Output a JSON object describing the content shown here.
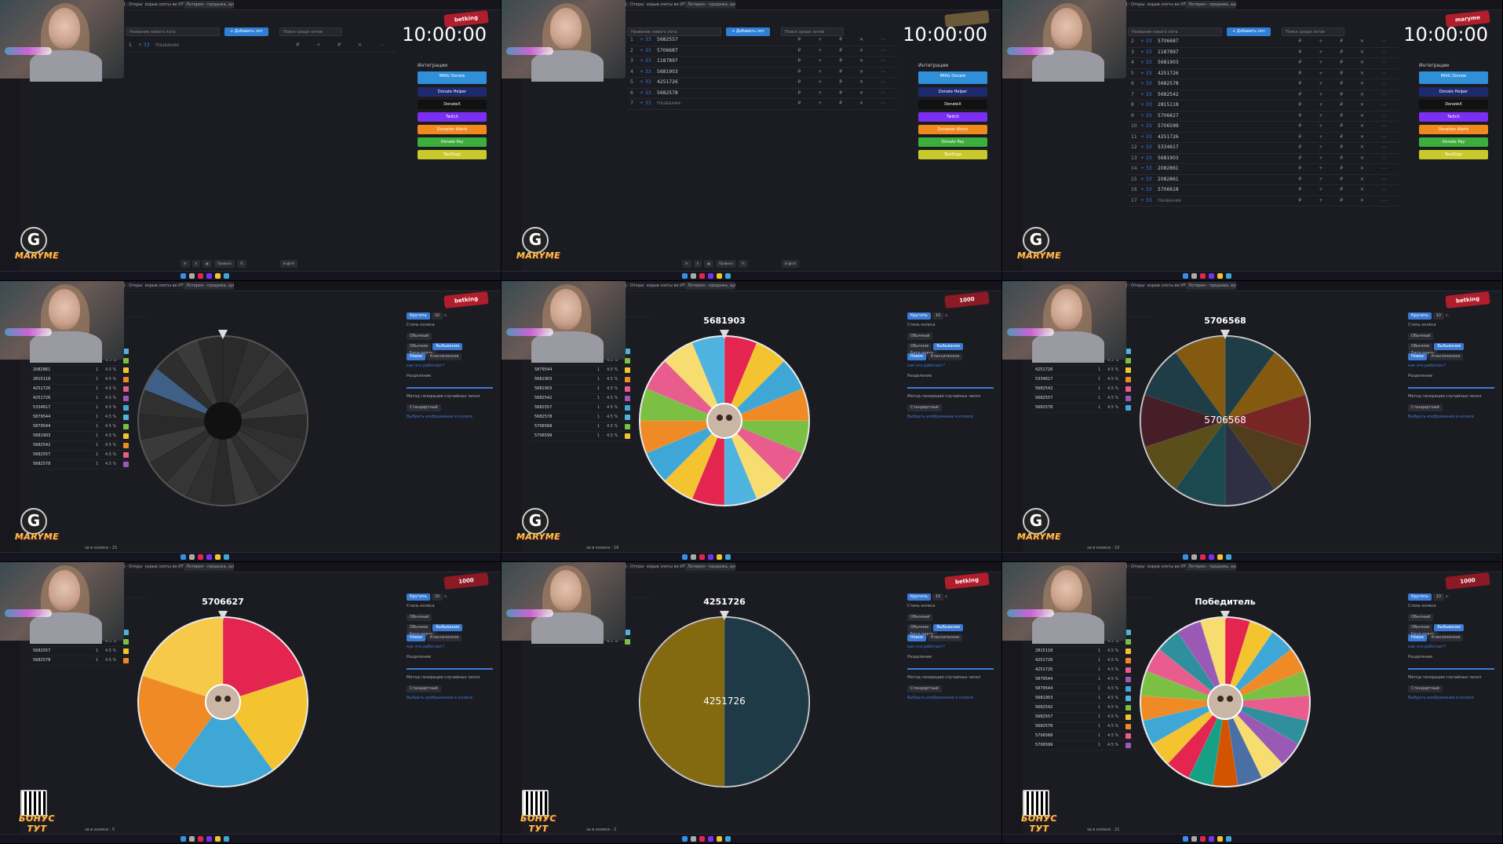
{
  "browser": {
    "tabs": [
      "Войти AGJ - Открыть войти к",
      "взрыв злоты ве ИТ - Поиск в",
      "Лотерея - продажа, аукцион"
    ]
  },
  "streamer": {
    "logo_letter": "G",
    "name": "MARYME",
    "name_small": "maryme",
    "bonus_text": "БОНУС ТУТ"
  },
  "timer": "10:00:00",
  "badges": {
    "top_small": "betking",
    "coins": "1000"
  },
  "auction": {
    "new_lot_placeholder": "Название нового лота",
    "add_button": "+ Добавить лот",
    "search_placeholder": "Поиск среди лотов",
    "empty_lot_name": "Название",
    "panel1_lots": [
      {
        "n": "1",
        "plus": "+ 33",
        "name": "Название"
      }
    ],
    "panel2_lots": [
      {
        "n": "1",
        "plus": "+ 33",
        "name": "5682557"
      },
      {
        "n": "2",
        "plus": "+ 33",
        "name": "5706687"
      },
      {
        "n": "3",
        "plus": "+ 33",
        "name": "1187897"
      },
      {
        "n": "4",
        "plus": "+ 33",
        "name": "5681903"
      },
      {
        "n": "5",
        "plus": "+ 33",
        "name": "4251726"
      },
      {
        "n": "6",
        "plus": "+ 33",
        "name": "5682578"
      },
      {
        "n": "7",
        "plus": "+ 33",
        "name": "Название"
      }
    ],
    "panel3_lots": [
      {
        "n": "2",
        "plus": "+ 33",
        "name": "5706687"
      },
      {
        "n": "3",
        "plus": "+ 33",
        "name": "1187897"
      },
      {
        "n": "4",
        "plus": "+ 33",
        "name": "5681903"
      },
      {
        "n": "5",
        "plus": "+ 33",
        "name": "4251726"
      },
      {
        "n": "6",
        "plus": "+ 33",
        "name": "5682578"
      },
      {
        "n": "7",
        "plus": "+ 33",
        "name": "5682542"
      },
      {
        "n": "8",
        "plus": "+ 33",
        "name": "2815118"
      },
      {
        "n": "9",
        "plus": "+ 33",
        "name": "5706627"
      },
      {
        "n": "10",
        "plus": "+ 33",
        "name": "5706599"
      },
      {
        "n": "11",
        "plus": "+ 33",
        "name": "4251726"
      },
      {
        "n": "12",
        "plus": "+ 33",
        "name": "5334617"
      },
      {
        "n": "13",
        "plus": "+ 33",
        "name": "5681903"
      },
      {
        "n": "14",
        "plus": "+ 33",
        "name": "2082861"
      },
      {
        "n": "15",
        "plus": "+ 33",
        "name": "2082861"
      },
      {
        "n": "16",
        "plus": "+ 33",
        "name": "5706618"
      },
      {
        "n": "17",
        "plus": "+ 33",
        "name": "Название"
      }
    ],
    "integrations_title": "Интеграции",
    "integrations": [
      {
        "label": "IMAG Donate",
        "color": "#2f8fd8"
      },
      {
        "label": "Donate Helper",
        "color": "#1d2a6b"
      },
      {
        "label": "DonateX",
        "color": "#111111"
      },
      {
        "label": "Twitch",
        "color": "#7b2ff2"
      },
      {
        "label": "Donation Alerts",
        "color": "#f08a1c"
      },
      {
        "label": "Donate Pay",
        "color": "#3cae3c"
      },
      {
        "label": "TwoDogs",
        "color": "#c9c92c"
      }
    ],
    "bottom_buttons": [
      "Правила",
      "English"
    ]
  },
  "wheel": {
    "spin_button": "Крутить",
    "spin_value": "10",
    "spin_unit": "с.",
    "style_label": "Стиль колеса",
    "style_value": "Обычный",
    "mode_tabs": [
      "Обычное",
      "Выбывание",
      "Батл рояль"
    ],
    "sub_tabs": [
      "Новое",
      "Классическое"
    ],
    "how_link": "как это работает?",
    "split_label": "Разделение",
    "split_hint": "лото > 10",
    "rng_label": "Метод генерации случайных чисел",
    "rng_link": "Узнать больше",
    "rng_value": "Стандартный",
    "image_link": "Выбрать изображение в колесе",
    "participants_label": "Участники",
    "panels": [
      {
        "title": "",
        "footer": "за в колесе - 21"
      },
      {
        "title": "5681903",
        "footer": "за в колесе - 16"
      },
      {
        "title": "5706568",
        "center": "5706568",
        "footer": "за в колесе - 10"
      },
      {
        "title": "5706627",
        "footer": "за в колесе - 5"
      },
      {
        "title": "4251726",
        "center": "4251726",
        "footer": "за в колесе - 2"
      },
      {
        "title": "Победитель",
        "footer": "за в колесе - 21"
      }
    ],
    "left_lists": [
      [
        "1203844",
        "2082861",
        "2082861",
        "2815118",
        "4251726",
        "4251726",
        "5334617",
        "5879544",
        "5879544",
        "5681903",
        "5682542",
        "5682557",
        "5682578"
      ],
      [
        "4251726",
        "5334617",
        "5879544",
        "5681903",
        "5681903",
        "5682542",
        "5682557",
        "5682578",
        "5706568",
        "5706599"
      ],
      [
        "2082861",
        "4251726",
        "4251726",
        "5334617",
        "5682542",
        "5682557",
        "5682578"
      ],
      [
        "4251726",
        "4251726",
        "5682557",
        "5682578"
      ],
      [
        "5682557",
        "5682578"
      ],
      [
        "2082861",
        "2082861",
        "2815118",
        "4251726",
        "4251726",
        "5879544",
        "5879544",
        "5681903",
        "5682542",
        "5682557",
        "5682578",
        "5706568",
        "5706599"
      ]
    ],
    "pct": "4.5 %"
  }
}
